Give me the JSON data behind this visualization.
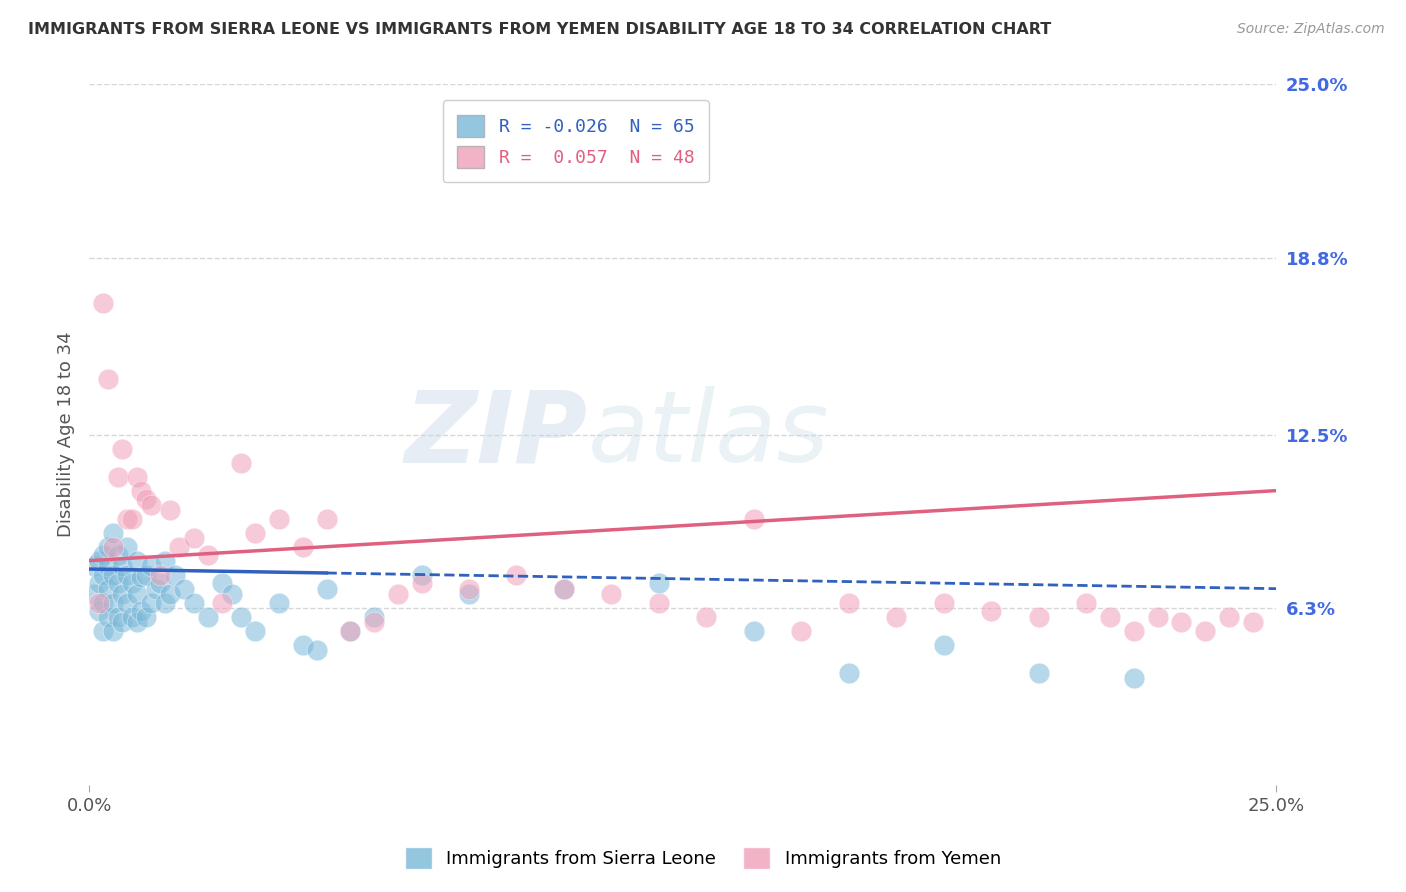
{
  "title": "IMMIGRANTS FROM SIERRA LEONE VS IMMIGRANTS FROM YEMEN DISABILITY AGE 18 TO 34 CORRELATION CHART",
  "source": "Source: ZipAtlas.com",
  "ylabel": "Disability Age 18 to 34",
  "xlim": [
    0.0,
    0.25
  ],
  "ylim": [
    0.0,
    0.25
  ],
  "ytick_right_values": [
    0.063,
    0.125,
    0.188,
    0.25
  ],
  "ytick_right_labels": [
    "6.3%",
    "12.5%",
    "18.8%",
    "25.0%"
  ],
  "watermark_text": "ZIP",
  "watermark_text2": "atlas",
  "sierra_leone_color": "#7ab8d9",
  "yemen_color": "#f0a0b8",
  "sierra_leone_line_color": "#3060c0",
  "yemen_line_color": "#e06080",
  "background_color": "#ffffff",
  "grid_color": "#cccccc",
  "sl_line_x0": 0.0,
  "sl_line_y0": 0.077,
  "sl_line_x1": 0.25,
  "sl_line_y1": 0.07,
  "ye_line_x0": 0.0,
  "ye_line_y0": 0.08,
  "ye_line_x1": 0.25,
  "ye_line_y1": 0.105,
  "sl_scatter_x": [
    0.001,
    0.001,
    0.002,
    0.002,
    0.002,
    0.003,
    0.003,
    0.003,
    0.003,
    0.004,
    0.004,
    0.004,
    0.004,
    0.005,
    0.005,
    0.005,
    0.005,
    0.006,
    0.006,
    0.006,
    0.007,
    0.007,
    0.007,
    0.008,
    0.008,
    0.008,
    0.009,
    0.009,
    0.01,
    0.01,
    0.01,
    0.011,
    0.011,
    0.012,
    0.012,
    0.013,
    0.013,
    0.014,
    0.015,
    0.016,
    0.016,
    0.017,
    0.018,
    0.02,
    0.022,
    0.025,
    0.028,
    0.03,
    0.032,
    0.035,
    0.04,
    0.045,
    0.048,
    0.05,
    0.055,
    0.06,
    0.07,
    0.08,
    0.1,
    0.12,
    0.14,
    0.16,
    0.18,
    0.2,
    0.22
  ],
  "sl_scatter_y": [
    0.068,
    0.078,
    0.062,
    0.072,
    0.08,
    0.055,
    0.065,
    0.075,
    0.082,
    0.06,
    0.07,
    0.078,
    0.085,
    0.055,
    0.065,
    0.075,
    0.09,
    0.06,
    0.072,
    0.082,
    0.058,
    0.068,
    0.078,
    0.065,
    0.075,
    0.085,
    0.06,
    0.072,
    0.058,
    0.068,
    0.08,
    0.062,
    0.074,
    0.06,
    0.075,
    0.065,
    0.078,
    0.07,
    0.072,
    0.065,
    0.08,
    0.068,
    0.075,
    0.07,
    0.065,
    0.06,
    0.072,
    0.068,
    0.06,
    0.055,
    0.065,
    0.05,
    0.048,
    0.07,
    0.055,
    0.06,
    0.075,
    0.068,
    0.07,
    0.072,
    0.055,
    0.04,
    0.05,
    0.04,
    0.038
  ],
  "ye_scatter_x": [
    0.002,
    0.003,
    0.004,
    0.005,
    0.006,
    0.007,
    0.008,
    0.009,
    0.01,
    0.011,
    0.012,
    0.013,
    0.015,
    0.017,
    0.019,
    0.022,
    0.025,
    0.028,
    0.032,
    0.035,
    0.04,
    0.045,
    0.05,
    0.055,
    0.06,
    0.065,
    0.07,
    0.08,
    0.09,
    0.1,
    0.11,
    0.12,
    0.13,
    0.14,
    0.15,
    0.16,
    0.17,
    0.18,
    0.19,
    0.2,
    0.21,
    0.215,
    0.22,
    0.225,
    0.23,
    0.235,
    0.24,
    0.245
  ],
  "ye_scatter_y": [
    0.065,
    0.172,
    0.145,
    0.085,
    0.11,
    0.12,
    0.095,
    0.095,
    0.11,
    0.105,
    0.102,
    0.1,
    0.075,
    0.098,
    0.085,
    0.088,
    0.082,
    0.065,
    0.115,
    0.09,
    0.095,
    0.085,
    0.095,
    0.055,
    0.058,
    0.068,
    0.072,
    0.07,
    0.075,
    0.07,
    0.068,
    0.065,
    0.06,
    0.095,
    0.055,
    0.065,
    0.06,
    0.065,
    0.062,
    0.06,
    0.065,
    0.06,
    0.055,
    0.06,
    0.058,
    0.055,
    0.06,
    0.058
  ]
}
